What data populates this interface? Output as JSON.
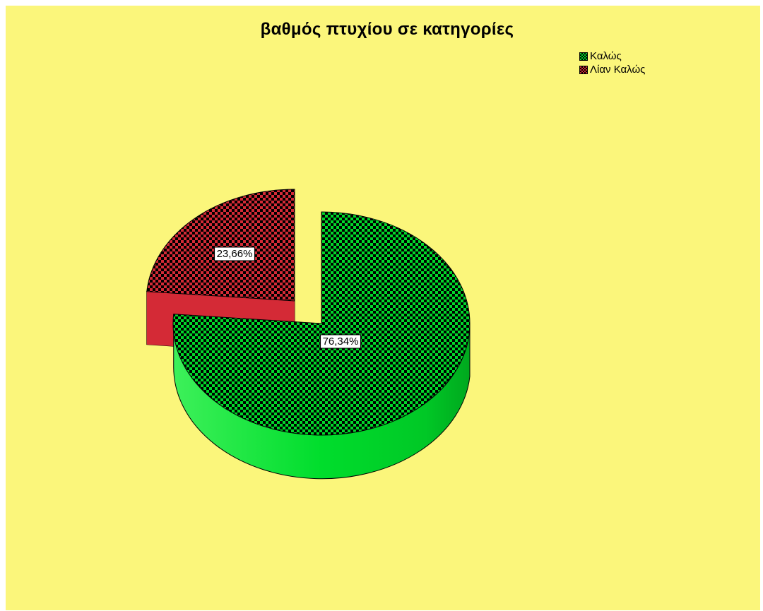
{
  "chart_data": {
    "type": "pie",
    "title": "βαθμός πτυχίου σε κατηγορίες",
    "categories": [
      "Καλώς",
      "Λίαν Καλώς"
    ],
    "values": [
      76.34,
      23.66
    ],
    "labels": [
      "76,34%",
      "23,66%"
    ],
    "colors": [
      "#00d82a",
      "#d42a36"
    ],
    "background": "#fbf67b",
    "legend": "top-right",
    "style": "3d-exploded-checkered"
  }
}
